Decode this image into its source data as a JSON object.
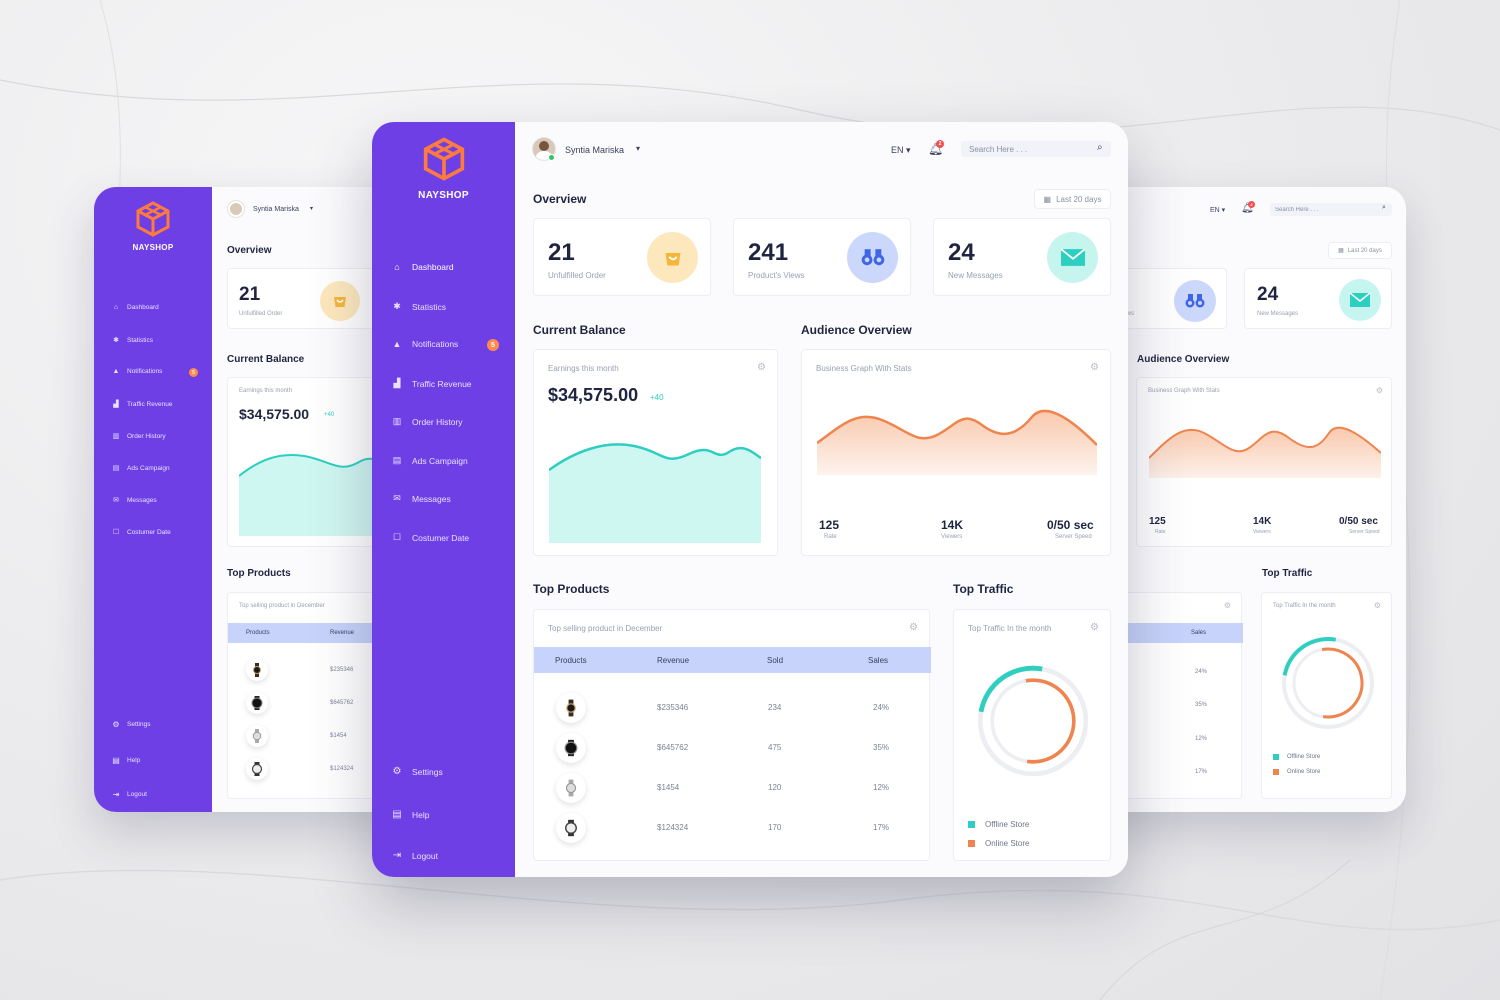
{
  "brand": {
    "name": "NAYSHOP",
    "logo_icon": "cube-icon",
    "logo_color": "#ff7a3d"
  },
  "colors": {
    "sidebar": "#6f3fe6",
    "accent_teal": "#2ecfc0",
    "accent_orange": "#f0844e",
    "table_head": "#c7d3fb"
  },
  "header": {
    "user_name": "Syntia Mariska",
    "language": "EN",
    "notification_count": "2",
    "search_placeholder": "Search Here . . ."
  },
  "sidebar": {
    "items": [
      {
        "label": "Dashboard",
        "icon": "home-icon"
      },
      {
        "label": "Statistics",
        "icon": "pin-icon"
      },
      {
        "label": "Notifications",
        "icon": "bell-icon",
        "badge": "5"
      },
      {
        "label": "Traffic Revenue",
        "icon": "bar-chart-icon"
      },
      {
        "label": "Order History",
        "icon": "columns-icon"
      },
      {
        "label": "Ads Campaign",
        "icon": "file-icon"
      },
      {
        "label": "Messages",
        "icon": "mail-icon"
      },
      {
        "label": "Costumer Date",
        "icon": "clipboard-icon"
      }
    ],
    "bottom": [
      {
        "label": "Settings",
        "icon": "gear-icon"
      },
      {
        "label": "Help",
        "icon": "document-icon"
      },
      {
        "label": "Logout",
        "icon": "logout-icon"
      }
    ]
  },
  "overview": {
    "title": "Overview",
    "range": "Last 20 days",
    "stats": [
      {
        "value": "21",
        "label": "Unfulfilled Order",
        "icon": "shopping-bag-icon"
      },
      {
        "value": "241",
        "label": "Product's Views",
        "icon": "binoculars-icon"
      },
      {
        "value": "24",
        "label": "New Messages",
        "icon": "envelope-icon"
      }
    ]
  },
  "balance": {
    "title": "Current Balance",
    "caption": "Earnings this month",
    "amount": "$34,575.00",
    "delta": "+40"
  },
  "audience": {
    "title": "Audience Overview",
    "caption": "Business Graph With Stats",
    "metrics": [
      {
        "value": "125",
        "label": "Rate"
      },
      {
        "value": "14K",
        "label": "Viewers"
      },
      {
        "value": "0/50 sec",
        "label": "Server Speed"
      }
    ]
  },
  "products": {
    "title": "Top Products",
    "caption": "Top selling product in December",
    "columns": [
      "Products",
      "Revenue",
      "Sold",
      "Sales"
    ],
    "rows": [
      {
        "revenue": "$235346",
        "sold": "234",
        "sales": "24%"
      },
      {
        "revenue": "$645762",
        "sold": "475",
        "sales": "35%"
      },
      {
        "revenue": "$1454",
        "sold": "120",
        "sales": "12%"
      },
      {
        "revenue": "$124324",
        "sold": "170",
        "sales": "17%"
      }
    ]
  },
  "traffic": {
    "title": "Top Traffic",
    "caption": "Top Traffic In the month",
    "legend": [
      "Offline Store",
      "Online Store"
    ],
    "offline_fraction": 0.25,
    "online_fraction": 0.55
  }
}
